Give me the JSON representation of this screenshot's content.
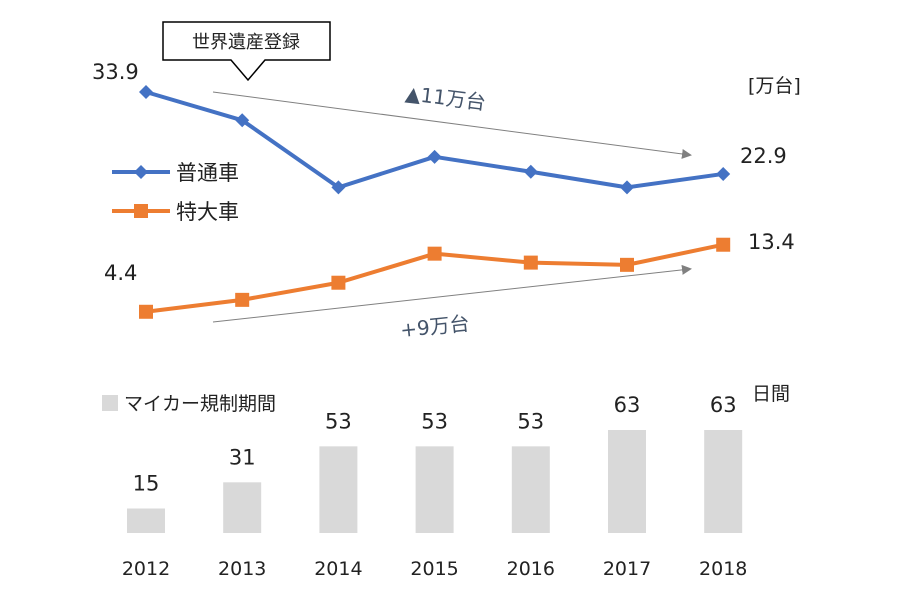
{
  "chart_data": [
    {
      "type": "line",
      "unit_label": "[万台]",
      "x": [
        "2012",
        "2013",
        "2014",
        "2015",
        "2016",
        "2017",
        "2018"
      ],
      "series": [
        {
          "name": "普通車",
          "color": "#4472C4",
          "marker": "diamond",
          "values": [
            33.9,
            30.1,
            21.1,
            25.2,
            23.2,
            21.1,
            22.9
          ],
          "labels": {
            "first": "33.9",
            "last": "22.9"
          }
        },
        {
          "name": "特大車",
          "color": "#ED7D31",
          "marker": "square",
          "values": [
            4.4,
            6.0,
            8.3,
            12.2,
            11.0,
            10.7,
            13.4
          ],
          "labels": {
            "first": "4.4",
            "last": "13.4"
          }
        }
      ],
      "legend": "left",
      "grid": false,
      "annotations": {
        "callout": "世界遺産登録",
        "trend_down": "▲11万台",
        "trend_up": "+9万台",
        "arrow_color": "#808080"
      }
    },
    {
      "type": "bar",
      "name": "マイカー規制期間",
      "unit": "日間",
      "color": "#D9D9D9",
      "categories": [
        "2012",
        "2013",
        "2014",
        "2015",
        "2016",
        "2017",
        "2018"
      ],
      "values": [
        15,
        31,
        53,
        53,
        53,
        63,
        63
      ],
      "ylim": [
        0,
        63
      ],
      "grid": false
    }
  ]
}
